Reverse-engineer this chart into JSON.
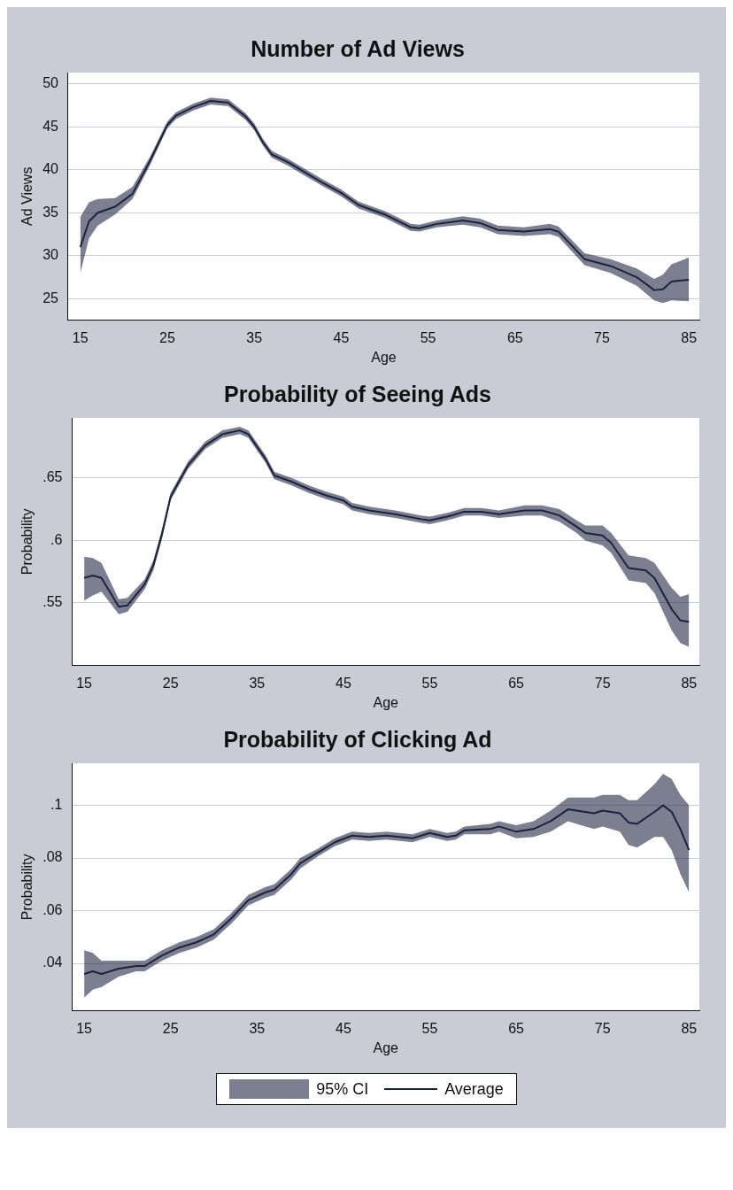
{
  "chart_data": [
    {
      "type": "line",
      "title": "Number of Ad Views",
      "xlabel": "Age",
      "ylabel": "Ad Views",
      "xlim": [
        13.6,
        86.2
      ],
      "ylim": [
        22.5,
        51.3
      ],
      "xticks": [
        15,
        25,
        35,
        45,
        55,
        65,
        75,
        85
      ],
      "yticks": [
        25,
        30,
        35,
        40,
        45,
        50
      ],
      "grid": "y",
      "x": [
        15,
        16,
        17,
        19,
        21,
        23,
        25,
        26,
        28,
        30,
        32,
        34,
        35,
        36,
        37,
        39,
        41,
        43,
        45,
        47,
        50,
        53,
        54,
        56,
        59,
        61,
        63,
        66,
        69,
        70,
        73,
        76,
        79,
        81,
        82,
        83,
        85
      ],
      "series": [
        {
          "color": "#1c2340",
          "values": [
            31,
            34,
            35,
            35.7,
            37.2,
            41,
            45.2,
            46.3,
            47.3,
            48,
            47.8,
            46.2,
            45,
            43.2,
            41.8,
            40.8,
            39.6,
            38.4,
            37.3,
            35.9,
            34.8,
            33.3,
            33.2,
            33.7,
            34.1,
            33.8,
            33,
            32.8,
            33.1,
            32.8,
            29.6,
            28.8,
            27.5,
            26,
            26.1,
            27,
            27.2
          ],
          "lower": [
            28,
            32,
            33.5,
            34.8,
            36.6,
            40.5,
            44.8,
            45.9,
            46.9,
            47.6,
            47.4,
            45.8,
            44.6,
            42.8,
            41.4,
            40.4,
            39.2,
            38,
            36.9,
            35.5,
            34.4,
            32.9,
            32.8,
            33.3,
            33.6,
            33.3,
            32.5,
            32.3,
            32.5,
            32.2,
            28.9,
            28,
            26.5,
            24.8,
            24.5,
            24.8,
            24.7
          ],
          "upper": [
            34.5,
            36.2,
            36.6,
            36.7,
            38,
            41.5,
            45.6,
            46.7,
            47.7,
            48.4,
            48.2,
            46.6,
            45.4,
            43.6,
            42.2,
            41.2,
            40,
            38.8,
            37.7,
            36.3,
            35.2,
            33.7,
            33.6,
            34.1,
            34.6,
            34.3,
            33.5,
            33.3,
            33.7,
            33.4,
            30.3,
            29.6,
            28.5,
            27.3,
            27.8,
            29,
            29.8
          ]
        }
      ]
    },
    {
      "type": "line",
      "title": "Probability of Seeing Ads",
      "xlabel": "Age",
      "ylabel": "Probability",
      "xlim": [
        13.6,
        86.2
      ],
      "ylim": [
        0.5,
        0.698
      ],
      "xticks": [
        15,
        25,
        35,
        45,
        55,
        65,
        75,
        85
      ],
      "yticks": [
        {
          "value": 0.55,
          "label": ".55"
        },
        {
          "value": 0.6,
          "label": ".6"
        },
        {
          "value": 0.65,
          "label": ".65"
        }
      ],
      "grid": "y",
      "x": [
        15,
        16,
        17,
        19,
        20,
        22,
        23,
        24,
        25,
        27,
        29,
        31,
        33,
        34,
        36,
        37,
        39,
        41,
        43,
        45,
        46,
        48,
        51,
        54,
        55,
        57,
        59,
        61,
        63,
        66,
        68,
        70,
        72,
        73,
        75,
        76,
        78,
        80,
        81,
        83,
        84,
        85
      ],
      "series": [
        {
          "color": "#1c2340",
          "values": [
            0.57,
            0.572,
            0.57,
            0.547,
            0.548,
            0.565,
            0.58,
            0.605,
            0.635,
            0.66,
            0.676,
            0.685,
            0.688,
            0.685,
            0.665,
            0.652,
            0.647,
            0.641,
            0.636,
            0.632,
            0.627,
            0.624,
            0.621,
            0.617,
            0.616,
            0.619,
            0.623,
            0.623,
            0.621,
            0.624,
            0.624,
            0.62,
            0.611,
            0.606,
            0.604,
            0.598,
            0.578,
            0.576,
            0.57,
            0.545,
            0.536,
            0.535
          ],
          "lower": [
            0.552,
            0.556,
            0.559,
            0.541,
            0.543,
            0.561,
            0.576,
            0.601,
            0.632,
            0.657,
            0.673,
            0.682,
            0.685,
            0.682,
            0.662,
            0.649,
            0.644,
            0.638,
            0.633,
            0.629,
            0.624,
            0.621,
            0.618,
            0.614,
            0.613,
            0.616,
            0.62,
            0.62,
            0.618,
            0.62,
            0.62,
            0.615,
            0.606,
            0.6,
            0.596,
            0.59,
            0.568,
            0.566,
            0.558,
            0.528,
            0.518,
            0.515
          ],
          "upper": [
            0.587,
            0.586,
            0.582,
            0.553,
            0.554,
            0.569,
            0.584,
            0.609,
            0.638,
            0.663,
            0.679,
            0.688,
            0.691,
            0.688,
            0.668,
            0.655,
            0.65,
            0.644,
            0.639,
            0.635,
            0.63,
            0.627,
            0.624,
            0.62,
            0.619,
            0.622,
            0.626,
            0.626,
            0.624,
            0.628,
            0.628,
            0.625,
            0.616,
            0.612,
            0.612,
            0.606,
            0.588,
            0.586,
            0.582,
            0.562,
            0.555,
            0.557
          ]
        }
      ]
    },
    {
      "type": "line",
      "title": "Probability of Clicking Ad",
      "xlabel": "Age",
      "ylabel": "Probability",
      "xlim": [
        13.6,
        86.2
      ],
      "ylim": [
        0.022,
        0.116
      ],
      "xticks": [
        15,
        25,
        35,
        45,
        55,
        65,
        75,
        85
      ],
      "yticks": [
        {
          "value": 0.04,
          "label": ".04"
        },
        {
          "value": 0.06,
          "label": ".06"
        },
        {
          "value": 0.08,
          "label": ".08"
        },
        {
          "value": 0.1,
          "label": ".1"
        }
      ],
      "grid": "y",
      "legend": "bottom",
      "annotations": [
        "95% CI"
      ],
      "x": [
        15,
        16,
        17,
        19,
        21,
        22,
        24,
        26,
        28,
        30,
        32,
        34,
        36,
        37,
        39,
        40,
        42,
        44,
        46,
        48,
        50,
        53,
        55,
        57,
        58,
        59,
        62,
        63,
        65,
        67,
        69,
        71,
        73,
        74,
        75,
        77,
        78,
        79,
        81,
        82,
        83,
        84,
        85
      ],
      "series": [
        {
          "name": "Average",
          "color": "#1c2340",
          "values": [
            0.036,
            0.037,
            0.036,
            0.038,
            0.039,
            0.039,
            0.043,
            0.046,
            0.048,
            0.051,
            0.057,
            0.064,
            0.067,
            0.068,
            0.074,
            0.078,
            0.082,
            0.086,
            0.0885,
            0.088,
            0.0885,
            0.0875,
            0.0895,
            0.088,
            0.0885,
            0.0905,
            0.091,
            0.092,
            0.09,
            0.091,
            0.094,
            0.0985,
            0.0975,
            0.097,
            0.098,
            0.097,
            0.0935,
            0.093,
            0.0975,
            0.1,
            0.0975,
            0.091,
            0.083
          ],
          "lower": [
            0.027,
            0.03,
            0.031,
            0.035,
            0.037,
            0.037,
            0.041,
            0.044,
            0.046,
            0.049,
            0.055,
            0.062,
            0.065,
            0.066,
            0.072,
            0.076,
            0.0805,
            0.0845,
            0.087,
            0.0865,
            0.087,
            0.086,
            0.088,
            0.0865,
            0.087,
            0.089,
            0.089,
            0.09,
            0.0875,
            0.088,
            0.09,
            0.094,
            0.092,
            0.091,
            0.092,
            0.09,
            0.085,
            0.084,
            0.088,
            0.088,
            0.083,
            0.074,
            0.067
          ],
          "upper": [
            0.045,
            0.044,
            0.041,
            0.041,
            0.041,
            0.041,
            0.045,
            0.048,
            0.05,
            0.053,
            0.059,
            0.066,
            0.069,
            0.07,
            0.076,
            0.08,
            0.0835,
            0.0875,
            0.09,
            0.0895,
            0.09,
            0.089,
            0.091,
            0.0895,
            0.09,
            0.092,
            0.093,
            0.094,
            0.0925,
            0.094,
            0.098,
            0.103,
            0.103,
            0.103,
            0.104,
            0.104,
            0.102,
            0.102,
            0.108,
            0.112,
            0.11,
            0.104,
            0.1
          ]
        }
      ]
    }
  ]
}
